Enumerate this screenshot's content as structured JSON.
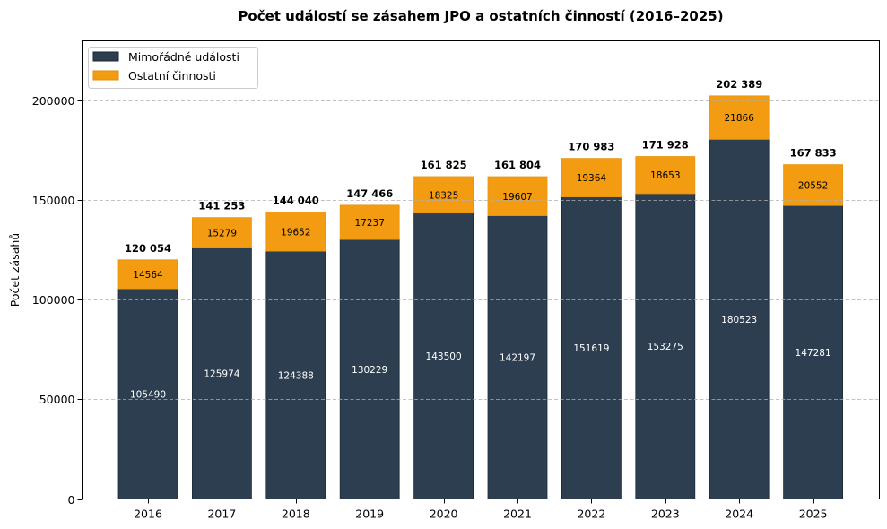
{
  "chart_data": {
    "type": "bar",
    "stacked": true,
    "title": "Počet událostí se zásahem JPO a ostatních činností (2016–2025)",
    "xlabel": "",
    "ylabel": "Počet zásahů",
    "ylim": [
      0,
      230000
    ],
    "yticks": [
      0,
      50000,
      100000,
      150000,
      200000
    ],
    "ytick_labels": [
      "0",
      "50000",
      "100000",
      "150000",
      "200000"
    ],
    "grid": "y, dashed",
    "legend_position": "top-left",
    "categories": [
      "2016",
      "2017",
      "2018",
      "2019",
      "2020",
      "2021",
      "2022",
      "2023",
      "2024",
      "2025"
    ],
    "series": [
      {
        "name": "Mimořádné události",
        "color": "#2c3e50",
        "values": [
          105490,
          125974,
          124388,
          130229,
          143500,
          142197,
          151619,
          153275,
          180523,
          147281
        ],
        "labels": [
          "105490",
          "125974",
          "124388",
          "130229",
          "143500",
          "142197",
          "151619",
          "153275",
          "180523",
          "147281"
        ]
      },
      {
        "name": "Ostatní činnosti",
        "color": "#f39c12",
        "values": [
          14564,
          15279,
          19652,
          17237,
          18325,
          19607,
          19364,
          18653,
          21866,
          20552
        ],
        "labels": [
          "14564",
          "15279",
          "19652",
          "17237",
          "18325",
          "19607",
          "19364",
          "18653",
          "21866",
          "20552"
        ]
      }
    ],
    "totals": [
      120054,
      141253,
      144040,
      147466,
      161825,
      161804,
      170983,
      171928,
      202389,
      167833
    ],
    "total_labels": [
      "120 054",
      "141 253",
      "144 040",
      "147 466",
      "161 825",
      "161 804",
      "170 983",
      "171 928",
      "202 389",
      "167 833"
    ]
  }
}
